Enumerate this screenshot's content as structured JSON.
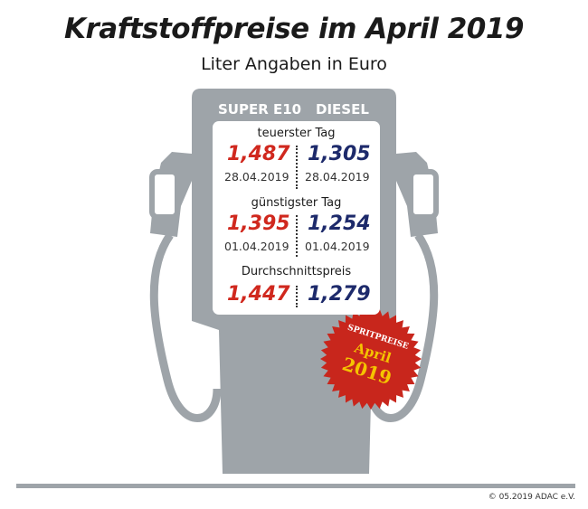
{
  "title": "Kraftstoffpreise im April 2019",
  "subtitle": "Liter Angaben in Euro",
  "columns": [
    "SUPER E10",
    "DIESEL"
  ],
  "sections": [
    {
      "label": "teuerster Tag",
      "super": "1,487",
      "diesel": "1,305",
      "super_date": "28.04.2019",
      "diesel_date": "28.04.2019"
    },
    {
      "label": "günstigster Tag",
      "super": "1,395",
      "diesel": "1,254",
      "super_date": "01.04.2019",
      "diesel_date": "01.04.2019"
    },
    {
      "label": "Durchschnittspreis",
      "super": "1,447",
      "diesel": "1,279"
    }
  ],
  "badge": {
    "line1": "SPRITPREISE",
    "line2": "April",
    "line3": "2019"
  },
  "copyright": "© 05.2019 ADAC e.V.",
  "colors": {
    "pump": "#9ea4a9",
    "super": "#d0281e",
    "diesel": "#1d2a6b",
    "badge": "#c8261c",
    "badge_text": "#f5c400"
  }
}
